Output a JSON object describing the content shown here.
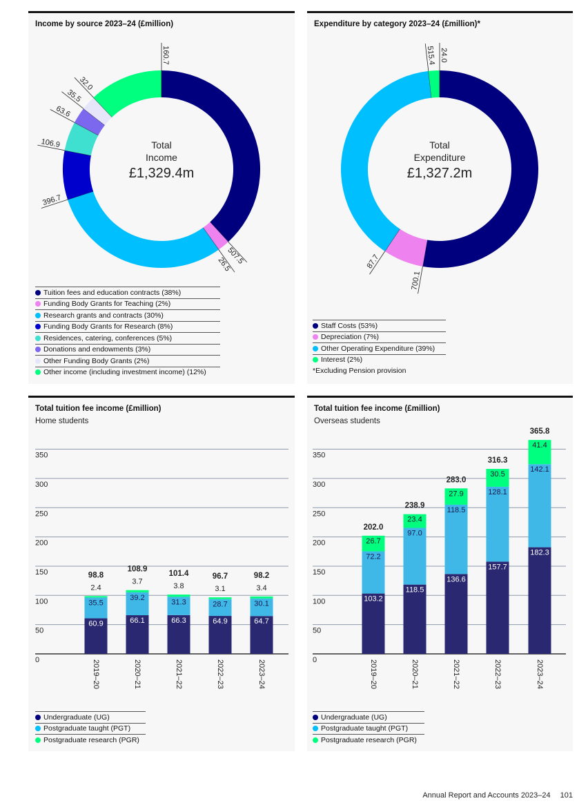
{
  "footer": {
    "report": "Annual Report and Accounts 2023–24",
    "page": "101"
  },
  "chart_data": [
    {
      "type": "pie",
      "variant": "donut",
      "title": "Income by source 2023–24 (£million)",
      "center_label": [
        "Total",
        "Income"
      ],
      "center_value": "£1,329.4m",
      "slices": [
        {
          "label": "Tuition fees and education contracts (38%)",
          "value": 507.5,
          "color": "#00007f"
        },
        {
          "label": "Funding Body Grants for Teaching (2%)",
          "value": 26.5,
          "color": "#ee82ee"
        },
        {
          "label": "Research grants and contracts (30%)",
          "value": 396.7,
          "color": "#00bfff"
        },
        {
          "label": "Funding Body Grants for Research (8%)",
          "value": 106.9,
          "color": "#0000cd"
        },
        {
          "label": "Residences, catering, conferences (5%)",
          "value": 63.6,
          "color": "#40e0d0"
        },
        {
          "label": "Donations and endowments (3%)",
          "value": 35.5,
          "color": "#7b68ee"
        },
        {
          "label": "Other Funding Body Grants (2%)",
          "value": 32.0,
          "color": "#e6e6fa"
        },
        {
          "label": "Other income (including investment income) (12%)",
          "value": 160.7,
          "color": "#00ff7f"
        }
      ],
      "value_labels": [
        "507.5",
        "26.5",
        "396.7",
        "106.9",
        "63.6",
        "35.5",
        "32.0",
        "160.7"
      ],
      "note": ""
    },
    {
      "type": "pie",
      "variant": "donut",
      "title": "Expenditure by category 2023–24 (£million)*",
      "center_label": [
        "Total",
        "Expenditure"
      ],
      "center_value": "£1,327.2m",
      "slices": [
        {
          "label": "Staff Costs (53%)",
          "value": 700.1,
          "color": "#00007f"
        },
        {
          "label": "Depreciation (7%)",
          "value": 87.7,
          "color": "#ee82ee"
        },
        {
          "label": "Other Operating Expenditure (39%)",
          "value": 515.4,
          "color": "#00bfff"
        },
        {
          "label": "Interest (2%)",
          "value": 24.0,
          "color": "#00ff7f"
        }
      ],
      "value_labels": [
        "700.1",
        "87.7",
        "515.4",
        "24.0"
      ],
      "note": "*Excluding Pension provision"
    },
    {
      "type": "bar",
      "stacked": true,
      "title": "Total tuition fee income (£million)",
      "subtitle": "Home students",
      "categories": [
        "2019–20",
        "2020–21",
        "2021–22",
        "2022–23",
        "2023–24"
      ],
      "series": [
        {
          "name": "Undergraduate (UG)",
          "color": "#2a2870",
          "label_color": "#ffffff",
          "values": [
            60.9,
            66.1,
            66.3,
            64.9,
            64.7
          ]
        },
        {
          "name": "Postgraduate taught (PGT)",
          "color": "#3fb8e8",
          "label_color": "#1a1a4e",
          "values": [
            35.5,
            39.2,
            31.3,
            28.7,
            30.1
          ]
        },
        {
          "name": "Postgraduate research (PGR)",
          "color": "#00ff7f",
          "label_color": "#1a1a2e",
          "values": [
            2.4,
            3.7,
            3.8,
            3.1,
            3.4
          ]
        }
      ],
      "totals": [
        98.8,
        108.9,
        101.4,
        96.7,
        98.2
      ],
      "yticks": [
        0,
        50,
        100,
        150,
        200,
        250,
        300,
        350
      ],
      "ylim": [
        0,
        350
      ],
      "grid": true,
      "pgr_label_outside": true,
      "legend_colors": [
        "#00007f",
        "#00bfff",
        "#00ff7f"
      ]
    },
    {
      "type": "bar",
      "stacked": true,
      "title": "Total tuition fee income (£million)",
      "subtitle": "Overseas students",
      "categories": [
        "2019–20",
        "2020–21",
        "2021–22",
        "2022–23",
        "2023–24"
      ],
      "series": [
        {
          "name": "Undergraduate (UG)",
          "color": "#2a2870",
          "label_color": "#ffffff",
          "values": [
            103.2,
            118.5,
            136.6,
            157.7,
            182.3
          ]
        },
        {
          "name": "Postgraduate taught (PGT)",
          "color": "#3fb8e8",
          "label_color": "#1a1a4e",
          "values": [
            72.2,
            97.0,
            118.5,
            128.1,
            142.1
          ]
        },
        {
          "name": "Postgraduate research (PGR)",
          "color": "#00ff7f",
          "label_color": "#1a1a2e",
          "values": [
            26.7,
            23.4,
            27.9,
            30.5,
            41.4
          ]
        }
      ],
      "totals": [
        202.0,
        238.9,
        283.0,
        316.3,
        365.8
      ],
      "yticks": [
        0,
        50,
        100,
        150,
        200,
        250,
        300,
        350
      ],
      "ylim": [
        0,
        350
      ],
      "grid": true,
      "pgr_label_outside": false,
      "legend_colors": [
        "#00007f",
        "#00bfff",
        "#00ff7f"
      ]
    }
  ]
}
